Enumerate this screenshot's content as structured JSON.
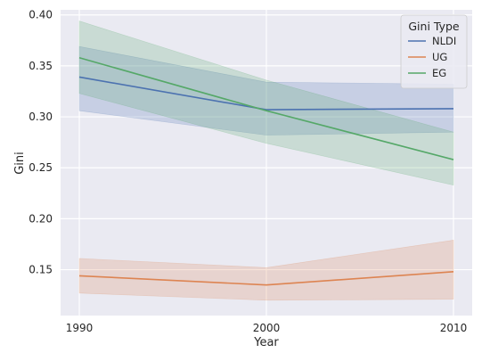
{
  "chart_data": {
    "type": "line",
    "title": "",
    "xlabel": "Year",
    "ylabel": "Gini",
    "x": [
      1990,
      2000,
      2010
    ],
    "xticks": [
      "1990",
      "2000",
      "2010"
    ],
    "yticks": [
      "0.15",
      "0.20",
      "0.25",
      "0.30",
      "0.35",
      "0.40"
    ],
    "xlim": [
      1989,
      2011
    ],
    "ylim": [
      0.105,
      0.405
    ],
    "grid": true,
    "legend": {
      "title": "Gini Type",
      "position": "top-right"
    },
    "series": [
      {
        "name": "NLDI",
        "color": "#4c72b0",
        "values": [
          0.339,
          0.307,
          0.308
        ],
        "ci_lower": [
          0.306,
          0.282,
          0.285
        ],
        "ci_upper": [
          0.369,
          0.334,
          0.332
        ]
      },
      {
        "name": "UG",
        "color": "#dd8452",
        "values": [
          0.144,
          0.135,
          0.148
        ],
        "ci_lower": [
          0.127,
          0.12,
          0.121
        ],
        "ci_upper": [
          0.161,
          0.152,
          0.179
        ]
      },
      {
        "name": "EG",
        "color": "#55a868",
        "values": [
          0.358,
          0.306,
          0.258
        ],
        "ci_lower": [
          0.323,
          0.274,
          0.233
        ],
        "ci_upper": [
          0.394,
          0.336,
          0.285
        ]
      }
    ]
  }
}
